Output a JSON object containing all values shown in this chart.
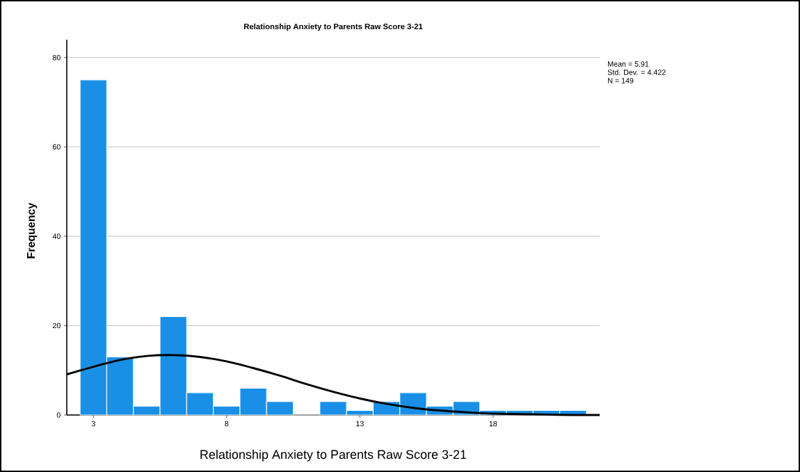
{
  "chart_data": {
    "type": "histogram",
    "title": "Relationship Anxiety to Parents Raw Score 3-21",
    "xlabel": "Relationship Anxiety to Parents Raw Score 3-21",
    "ylabel": "Frequency",
    "annotations": [
      "Mean = 5.91",
      "Std. Dev. = 4.422",
      "N = 149"
    ],
    "xlim": [
      2,
      22
    ],
    "ylim": [
      0,
      84
    ],
    "xticks": [
      3,
      8,
      13,
      18
    ],
    "yticks": [
      0,
      20,
      40,
      60,
      80
    ],
    "grid": "y",
    "series": [
      {
        "color": "#1990e6",
        "bins": [
          2.5,
          3.5,
          4.5,
          5.5,
          6.5,
          7.5,
          8.5,
          9.5,
          10.5,
          11.5,
          12.5,
          13.5,
          14.5,
          15.5,
          16.5,
          17.5,
          18.5,
          19.5,
          20.5,
          21.5
        ],
        "values": [
          75,
          13,
          2,
          22,
          5,
          2,
          6,
          3,
          0,
          3,
          1,
          3,
          5,
          2,
          3,
          1,
          1,
          1,
          1
        ]
      },
      {
        "type": "line",
        "color": "#000000",
        "x": [
          2,
          3,
          4,
          5,
          6,
          7,
          8,
          9,
          10,
          11,
          12,
          13,
          14,
          15,
          16,
          17,
          18,
          19,
          20,
          21,
          22
        ],
        "values": [
          9.1,
          10.8,
          12.3,
          13.2,
          13.4,
          13.0,
          12.0,
          10.5,
          8.8,
          6.9,
          5.2,
          3.7,
          2.5,
          1.6,
          1.0,
          0.6,
          0.3,
          0.2,
          0.1,
          0.0,
          0.0
        ]
      }
    ]
  }
}
